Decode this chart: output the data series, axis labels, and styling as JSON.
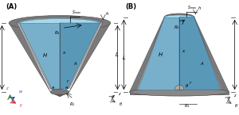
{
  "bg_color": "#ffffff",
  "gray_outer": "#7a7a7a",
  "gray_mid": "#909090",
  "gray_inner": "#b0b0b0",
  "gray_dark": "#555555",
  "blue_light": "#a8d8ea",
  "blue_mid": "#7ab8d8",
  "blue_dark": "#5a98b8",
  "blue_panel_left": "#78b0cc",
  "blue_panel_right": "#5a90b0",
  "label_A": "(A)",
  "label_B": "(B)",
  "ax_blue": "#2244cc",
  "ax_red": "#cc2222",
  "ax_green": "#228822",
  "ax_black": "#111111"
}
